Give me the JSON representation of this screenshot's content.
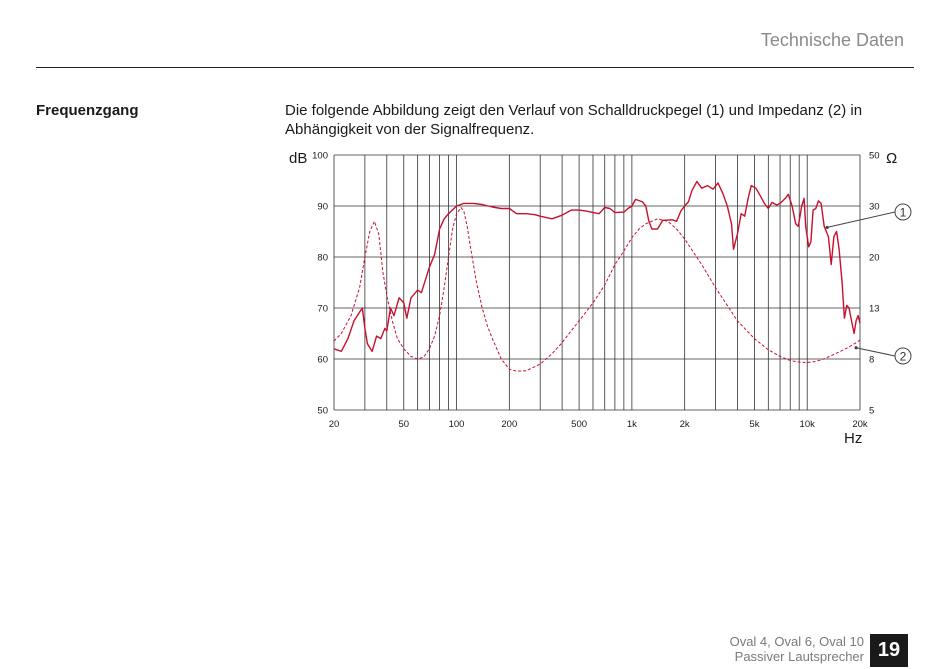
{
  "header": {
    "title": "Technische Daten"
  },
  "section": {
    "heading": "Frequenzgang",
    "text": "Die folgende Abbildung zeigt den Verlauf von Schalldruckpegel (1) und Impedanz (2) in Abhängigkeit von der Signalfrequenz."
  },
  "chart_data": {
    "type": "line",
    "xlabel": "Hz",
    "ylabel_left": "dB",
    "ylabel_right": "Ω",
    "x_scale": "log",
    "xlim": [
      20,
      20000
    ],
    "ylim_left": [
      50,
      100
    ],
    "grid": true,
    "x_ticks": [
      {
        "value": 20,
        "label": "20"
      },
      {
        "value": 50,
        "label": "50"
      },
      {
        "value": 100,
        "label": "100"
      },
      {
        "value": 200,
        "label": "200"
      },
      {
        "value": 500,
        "label": "500"
      },
      {
        "value": 1000,
        "label": "1k"
      },
      {
        "value": 2000,
        "label": "2k"
      },
      {
        "value": 5000,
        "label": "5k"
      },
      {
        "value": 10000,
        "label": "10k"
      },
      {
        "value": 20000,
        "label": "20k"
      }
    ],
    "y_ticks_left": [
      "100",
      "90",
      "80",
      "70",
      "60",
      "50"
    ],
    "y_ticks_right": [
      "50",
      "30",
      "20",
      "13",
      "8",
      "5"
    ],
    "series": [
      {
        "name": "1",
        "axis": "dB",
        "style": "solid",
        "color": "#c8102e",
        "points": [
          [
            20,
            62
          ],
          [
            22,
            61.5
          ],
          [
            24,
            64
          ],
          [
            26,
            67.5
          ],
          [
            29,
            70
          ],
          [
            30,
            66
          ],
          [
            31,
            63
          ],
          [
            33,
            61.5
          ],
          [
            35,
            64.5
          ],
          [
            37,
            64
          ],
          [
            39,
            66
          ],
          [
            40,
            65.5
          ],
          [
            42,
            70
          ],
          [
            44,
            68.5
          ],
          [
            47,
            72
          ],
          [
            50,
            71
          ],
          [
            52,
            68
          ],
          [
            55,
            72
          ],
          [
            60,
            73.5
          ],
          [
            63,
            73
          ],
          [
            65,
            74.5
          ],
          [
            70,
            78
          ],
          [
            75,
            80.5
          ],
          [
            80,
            85.5
          ],
          [
            85,
            87.5
          ],
          [
            90,
            88.5
          ],
          [
            100,
            90
          ],
          [
            110,
            90.5
          ],
          [
            125,
            90.5
          ],
          [
            140,
            90.3
          ],
          [
            160,
            89.8
          ],
          [
            180,
            89.5
          ],
          [
            200,
            89.5
          ],
          [
            220,
            88.5
          ],
          [
            250,
            88.5
          ],
          [
            280,
            88.3
          ],
          [
            300,
            88
          ],
          [
            350,
            87.5
          ],
          [
            400,
            88.2
          ],
          [
            450,
            89.2
          ],
          [
            500,
            89.2
          ],
          [
            550,
            89
          ],
          [
            600,
            88.7
          ],
          [
            650,
            88.5
          ],
          [
            700,
            89.7
          ],
          [
            750,
            89.5
          ],
          [
            800,
            88.7
          ],
          [
            900,
            88.8
          ],
          [
            950,
            89.5
          ],
          [
            1000,
            90
          ],
          [
            1050,
            91.3
          ],
          [
            1150,
            90.8
          ],
          [
            1200,
            90
          ],
          [
            1250,
            87
          ],
          [
            1300,
            85.5
          ],
          [
            1400,
            85.5
          ],
          [
            1500,
            87.2
          ],
          [
            1700,
            87.3
          ],
          [
            1800,
            87
          ],
          [
            1900,
            89
          ],
          [
            2000,
            90
          ],
          [
            2100,
            90.8
          ],
          [
            2200,
            93
          ],
          [
            2350,
            94.8
          ],
          [
            2500,
            93.5
          ],
          [
            2700,
            94
          ],
          [
            2900,
            93.3
          ],
          [
            3100,
            94.5
          ],
          [
            3300,
            92.5
          ],
          [
            3500,
            90
          ],
          [
            3700,
            86.5
          ],
          [
            3800,
            81.5
          ],
          [
            4000,
            84.5
          ],
          [
            4200,
            88.5
          ],
          [
            4400,
            88
          ],
          [
            4600,
            91.5
          ],
          [
            4800,
            94
          ],
          [
            5100,
            93.5
          ],
          [
            5400,
            92
          ],
          [
            5700,
            90.5
          ],
          [
            6000,
            89.5
          ],
          [
            6300,
            90.7
          ],
          [
            6700,
            90.2
          ],
          [
            7000,
            90.5
          ],
          [
            7500,
            91.5
          ],
          [
            7800,
            92.3
          ],
          [
            8200,
            90
          ],
          [
            8600,
            86.5
          ],
          [
            8900,
            86
          ],
          [
            9300,
            90
          ],
          [
            9600,
            91.5
          ],
          [
            9800,
            86
          ],
          [
            10200,
            82
          ],
          [
            10500,
            83
          ],
          [
            10800,
            89.2
          ],
          [
            11200,
            89.5
          ],
          [
            11600,
            91
          ],
          [
            12000,
            90.5
          ],
          [
            12500,
            86
          ],
          [
            13200,
            84
          ],
          [
            13700,
            78.5
          ],
          [
            14200,
            84
          ],
          [
            14700,
            85
          ],
          [
            15200,
            81.5
          ],
          [
            15800,
            75
          ],
          [
            16300,
            68
          ],
          [
            16800,
            70.5
          ],
          [
            17300,
            70
          ],
          [
            18000,
            67
          ],
          [
            18500,
            65
          ],
          [
            19000,
            67.5
          ],
          [
            19500,
            68.5
          ],
          [
            20000,
            67
          ]
        ]
      },
      {
        "name": "2",
        "axis": "dB",
        "style": "dashed",
        "color": "#c8102e",
        "points": [
          [
            20,
            63.5
          ],
          [
            22,
            65
          ],
          [
            25,
            68.5
          ],
          [
            28,
            74
          ],
          [
            30,
            80
          ],
          [
            32,
            85
          ],
          [
            34,
            87
          ],
          [
            36,
            84.5
          ],
          [
            38,
            77
          ],
          [
            40,
            72.5
          ],
          [
            43,
            67.5
          ],
          [
            46,
            64
          ],
          [
            50,
            62
          ],
          [
            55,
            60.5
          ],
          [
            60,
            60
          ],
          [
            65,
            60.4
          ],
          [
            70,
            62
          ],
          [
            75,
            64.5
          ],
          [
            80,
            68.5
          ],
          [
            85,
            74
          ],
          [
            90,
            80
          ],
          [
            95,
            85.5
          ],
          [
            100,
            88.5
          ],
          [
            106,
            89.7
          ],
          [
            110,
            89
          ],
          [
            115,
            86
          ],
          [
            120,
            82
          ],
          [
            130,
            75
          ],
          [
            140,
            70
          ],
          [
            150,
            66.5
          ],
          [
            160,
            64
          ],
          [
            180,
            60
          ],
          [
            200,
            58
          ],
          [
            220,
            57.6
          ],
          [
            250,
            57.7
          ],
          [
            300,
            59
          ],
          [
            350,
            61
          ],
          [
            400,
            63.2
          ],
          [
            450,
            65.5
          ],
          [
            500,
            67.5
          ],
          [
            600,
            71
          ],
          [
            700,
            74.5
          ],
          [
            800,
            78.5
          ],
          [
            900,
            81.2
          ],
          [
            1000,
            83.8
          ],
          [
            1100,
            85.5
          ],
          [
            1200,
            86.5
          ],
          [
            1400,
            87.5
          ],
          [
            1600,
            87
          ],
          [
            1800,
            85.5
          ],
          [
            2000,
            83.5
          ],
          [
            2500,
            78.5
          ],
          [
            3000,
            74
          ],
          [
            3500,
            70.5
          ],
          [
            4000,
            67.5
          ],
          [
            5000,
            64
          ],
          [
            6000,
            61.8
          ],
          [
            7000,
            60.5
          ],
          [
            8000,
            59.7
          ],
          [
            9000,
            59.4
          ],
          [
            10000,
            59.3
          ],
          [
            11000,
            59.5
          ],
          [
            12000,
            59.8
          ],
          [
            13000,
            60.3
          ],
          [
            15000,
            61.3
          ],
          [
            17000,
            62.2
          ],
          [
            19000,
            63.2
          ],
          [
            20000,
            63.7
          ]
        ]
      }
    ],
    "annotations": [
      "1",
      "2"
    ]
  },
  "footer": {
    "product": "Oval 4, Oval 6, Oval 10",
    "subtitle": "Passiver Lautsprecher",
    "page_number": "19"
  }
}
